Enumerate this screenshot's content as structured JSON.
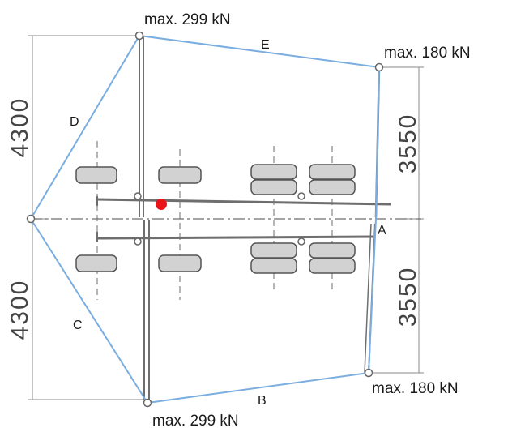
{
  "colors": {
    "outline": "#7aaee0",
    "beam": "#6e6e6e",
    "dim_line": "#8a8a8a",
    "wheel_fill": "#d2d2d2",
    "wheel_stroke": "#555555",
    "center_point": "#e8141a"
  },
  "loads": {
    "top_left": "max. 299 kN",
    "top_right": "max. 180 kN",
    "bottom_right": "max. 180 kN",
    "bottom_left": "max. 299 kN"
  },
  "labels": {
    "a": "A",
    "b": "B",
    "c": "C",
    "d": "D",
    "e": "E"
  },
  "dimensions": {
    "left_top": "4300",
    "left_bottom": "4300",
    "right_top": "3550",
    "right_bottom": "3550"
  }
}
